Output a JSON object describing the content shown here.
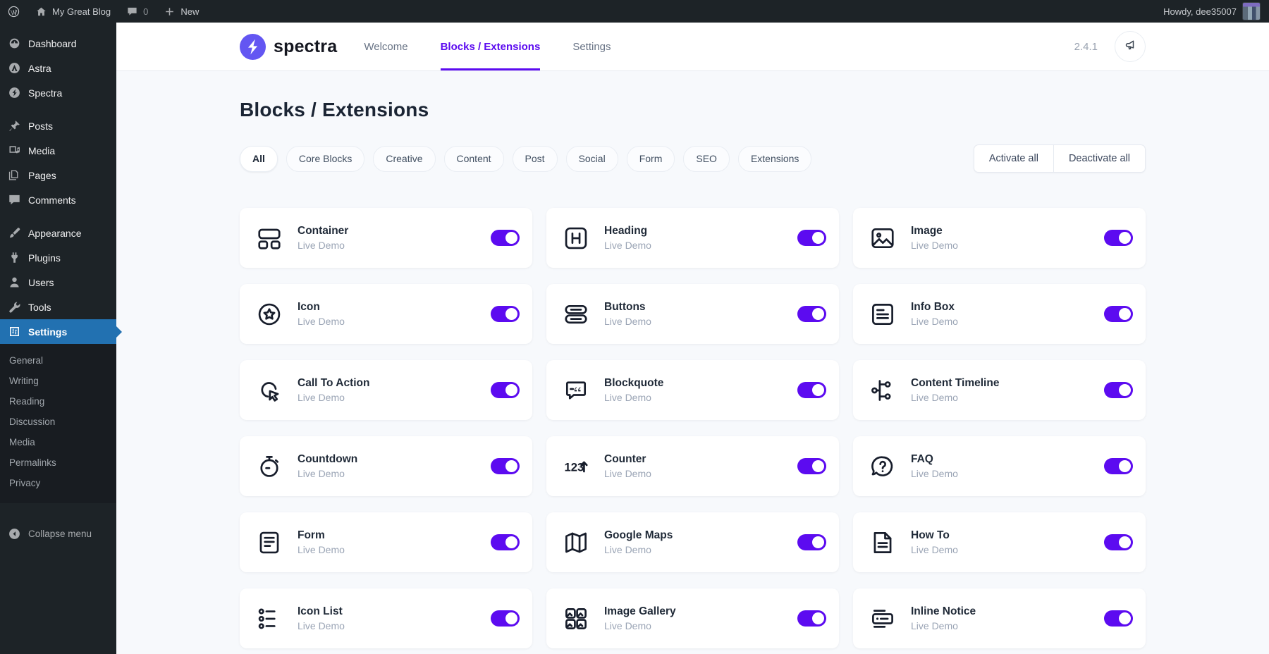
{
  "colors": {
    "accent": "#5C0BF0",
    "brand": "#6356F2",
    "admin_bar": "#1d2327",
    "active_menu": "#2271b1"
  },
  "admin_bar": {
    "site_name": "My Great Blog",
    "comment_count": "0",
    "new_label": "New",
    "howdy": "Howdy, dee35007"
  },
  "sidebar": {
    "items": [
      {
        "label": "Dashboard",
        "icon": "dashboard-icon"
      },
      {
        "label": "Astra",
        "icon": "astra-icon"
      },
      {
        "label": "Spectra",
        "icon": "spectra-icon"
      },
      {
        "label": "Posts",
        "icon": "pin-icon",
        "separator_before": true
      },
      {
        "label": "Media",
        "icon": "media-icon"
      },
      {
        "label": "Pages",
        "icon": "pages-icon"
      },
      {
        "label": "Comments",
        "icon": "comments-icon"
      },
      {
        "label": "Appearance",
        "icon": "appearance-icon",
        "separator_before": true
      },
      {
        "label": "Plugins",
        "icon": "plugins-icon"
      },
      {
        "label": "Users",
        "icon": "users-icon"
      },
      {
        "label": "Tools",
        "icon": "tools-icon"
      },
      {
        "label": "Settings",
        "icon": "settings-icon",
        "active": true,
        "submenu": [
          "General",
          "Writing",
          "Reading",
          "Discussion",
          "Media",
          "Permalinks",
          "Privacy"
        ]
      }
    ],
    "collapse_label": "Collapse menu"
  },
  "header": {
    "brand": "spectra",
    "nav": [
      {
        "label": "Welcome",
        "active": false
      },
      {
        "label": "Blocks / Extensions",
        "active": true
      },
      {
        "label": "Settings",
        "active": false
      }
    ],
    "version": "2.4.1",
    "announcement_icon": "megaphone-icon"
  },
  "page": {
    "title": "Blocks / Extensions",
    "filters": [
      "All",
      "Core Blocks",
      "Creative",
      "Content",
      "Post",
      "Social",
      "Form",
      "SEO",
      "Extensions"
    ],
    "active_filter": "All",
    "activate_all_label": "Activate all",
    "deactivate_all_label": "Deactivate all"
  },
  "blocks": [
    {
      "title": "Container",
      "subtitle": "Live Demo",
      "icon": "container-icon",
      "enabled": true
    },
    {
      "title": "Heading",
      "subtitle": "Live Demo",
      "icon": "heading-icon",
      "enabled": true
    },
    {
      "title": "Image",
      "subtitle": "Live Demo",
      "icon": "image-icon",
      "enabled": true
    },
    {
      "title": "Icon",
      "subtitle": "Live Demo",
      "icon": "star-circle-icon",
      "enabled": true
    },
    {
      "title": "Buttons",
      "subtitle": "Live Demo",
      "icon": "buttons-icon",
      "enabled": true
    },
    {
      "title": "Info Box",
      "subtitle": "Live Demo",
      "icon": "info-box-icon",
      "enabled": true
    },
    {
      "title": "Call To Action",
      "subtitle": "Live Demo",
      "icon": "cursor-click-icon",
      "enabled": true
    },
    {
      "title": "Blockquote",
      "subtitle": "Live Demo",
      "icon": "blockquote-icon",
      "enabled": true
    },
    {
      "title": "Content Timeline",
      "subtitle": "Live Demo",
      "icon": "content-timeline-icon",
      "enabled": true
    },
    {
      "title": "Countdown",
      "subtitle": "Live Demo",
      "icon": "stopwatch-icon",
      "enabled": true
    },
    {
      "title": "Counter",
      "subtitle": "Live Demo",
      "icon": "counter-icon",
      "enabled": true
    },
    {
      "title": "FAQ",
      "subtitle": "Live Demo",
      "icon": "question-bubble-icon",
      "enabled": true
    },
    {
      "title": "Form",
      "subtitle": "Live Demo",
      "icon": "form-icon",
      "enabled": true
    },
    {
      "title": "Google Maps",
      "subtitle": "Live Demo",
      "icon": "map-icon",
      "enabled": true
    },
    {
      "title": "How To",
      "subtitle": "Live Demo",
      "icon": "how-to-icon",
      "enabled": true
    },
    {
      "title": "Icon List",
      "subtitle": "Live Demo",
      "icon": "icon-list-icon",
      "enabled": true
    },
    {
      "title": "Image Gallery",
      "subtitle": "Live Demo",
      "icon": "image-gallery-icon",
      "enabled": true
    },
    {
      "title": "Inline Notice",
      "subtitle": "Live Demo",
      "icon": "inline-notice-icon",
      "enabled": true
    }
  ]
}
